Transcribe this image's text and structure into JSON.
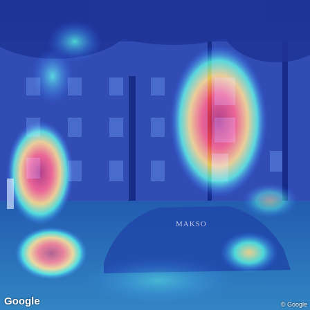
{
  "image": {
    "subject": "street-view-heatmap-overlay",
    "colors": {
      "sky": "#1b2a6b",
      "building": "#2a3f8f",
      "street": "#1f5f8f",
      "heat_low": "#1e3cff",
      "heat_mid": "#3fe0c8",
      "heat_high": "#ffd21f",
      "heat_peak": "#b40000"
    }
  },
  "overlay": {
    "brand": "Google",
    "copyright": "© Google",
    "storefront_sign": "MAKSO"
  }
}
